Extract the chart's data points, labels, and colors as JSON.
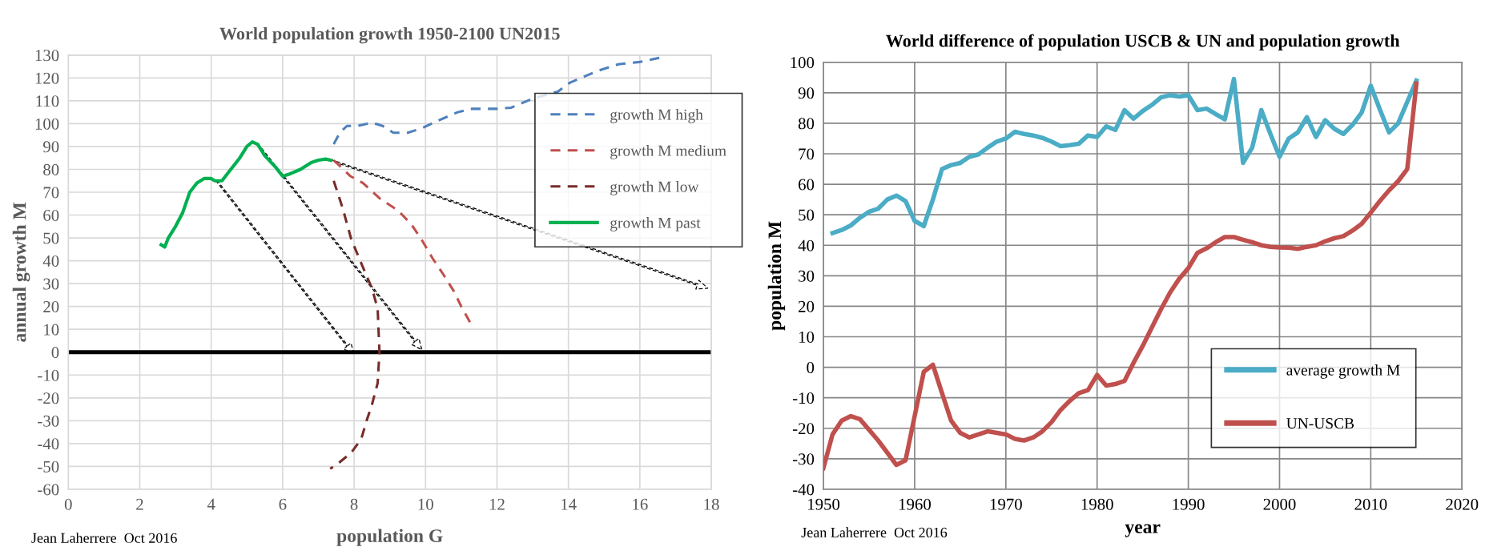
{
  "chart_data": [
    {
      "type": "line",
      "title": "World population growth 1950-2100 UN2015",
      "xlabel": "population G",
      "ylabel": "annual growth M",
      "xlim": [
        0,
        18
      ],
      "xticks": [
        0,
        2,
        4,
        6,
        8,
        10,
        12,
        14,
        16,
        18
      ],
      "ylim": [
        -60,
        130
      ],
      "yticks": [
        -60,
        -50,
        -40,
        -30,
        -20,
        -10,
        0,
        10,
        20,
        30,
        40,
        50,
        60,
        70,
        80,
        90,
        100,
        110,
        120,
        130
      ],
      "grid": true,
      "legend": "top right",
      "ref_lines": [
        {
          "axis": "y",
          "value": 0,
          "color": "#000000"
        }
      ],
      "annotations": [
        "Jean Laherrere  Oct 2016"
      ],
      "series": [
        {
          "name": "growth M high",
          "color": "#4f81bd",
          "line_style": "dashed",
          "x": [
            7.43,
            7.6,
            7.8,
            8.1,
            8.5,
            8.8,
            9.1,
            9.5,
            9.9,
            10.3,
            10.9,
            11.3,
            12.0,
            12.4,
            13.0,
            13.7,
            14.05,
            14.8,
            15.4,
            16.0,
            16.6
          ],
          "values": [
            91,
            96,
            99,
            99,
            100.5,
            99,
            96,
            96,
            98,
            101,
            105,
            106.5,
            106.5,
            107,
            111,
            114,
            118,
            123,
            126,
            127,
            129
          ]
        },
        {
          "name": "growth M medium",
          "color": "#c0504d",
          "line_style": "dashed",
          "x": [
            7.43,
            7.7,
            7.9,
            8.25,
            8.74,
            9.23,
            9.6,
            9.9,
            10.2,
            10.5,
            10.8,
            11.0,
            11.25
          ],
          "values": [
            84,
            80,
            77,
            74,
            67,
            62,
            56,
            49,
            41,
            34,
            26.5,
            20,
            13
          ]
        },
        {
          "name": "growth M low",
          "color": "#772c2a",
          "line_style": "dashed",
          "x": [
            7.43,
            7.68,
            7.92,
            8.17,
            8.5,
            8.66,
            8.71,
            8.66,
            8.5,
            8.35,
            8.2,
            7.92,
            7.53,
            7.33
          ],
          "values": [
            75,
            63,
            49.5,
            40,
            28,
            19,
            0,
            -13.5,
            -23,
            -30,
            -38,
            -44,
            -49,
            -51
          ]
        },
        {
          "name": "growth M past",
          "color": "#00b050",
          "line_style": "solid",
          "x": [
            2.6,
            2.7,
            2.8,
            3.0,
            3.2,
            3.4,
            3.6,
            3.8,
            4.0,
            4.1,
            4.3,
            4.5,
            4.8,
            5.0,
            5.15,
            5.3,
            5.5,
            5.8,
            6.0,
            6.2,
            6.5,
            6.8,
            7.0,
            7.2,
            7.35
          ],
          "values": [
            47,
            46,
            50,
            55,
            61,
            70,
            74,
            76,
            76,
            75,
            75,
            79,
            85,
            90,
            92,
            91,
            86,
            81,
            77,
            78,
            80,
            83,
            84,
            84.5,
            84
          ]
        }
      ]
    },
    {
      "type": "line",
      "title": "World difference of population USCB & UN and population growth",
      "xlabel": "year",
      "ylabel": "population M",
      "xlim": [
        1950,
        2020
      ],
      "xticks": [
        1950,
        1960,
        1970,
        1980,
        1990,
        2000,
        2010,
        2020
      ],
      "ylim": [
        -40,
        100
      ],
      "yticks": [
        -40,
        -30,
        -20,
        -10,
        0,
        10,
        20,
        30,
        40,
        50,
        60,
        70,
        80,
        90,
        100
      ],
      "grid": true,
      "legend": "bottom right",
      "annotations": [
        "Jean Laherrere  Oct 2016"
      ],
      "series": [
        {
          "name": "average growth M",
          "color": "#4bacc6",
          "line_style": "solid",
          "x": [
            1951,
            1952,
            1953,
            1954,
            1955,
            1956,
            1957,
            1958,
            1959,
            1960,
            1961,
            1962,
            1963,
            1964,
            1965,
            1966,
            1967,
            1968,
            1969,
            1970,
            1971,
            1972,
            1973,
            1974,
            1975,
            1976,
            1977,
            1978,
            1979,
            1980,
            1981,
            1982,
            1983,
            1984,
            1985,
            1986,
            1987,
            1988,
            1989,
            1990,
            1991,
            1992,
            1993,
            1994,
            1995,
            1996,
            1997,
            1998,
            1999,
            2000,
            2001,
            2002,
            2003,
            2004,
            2005,
            2006,
            2007,
            2008,
            2009,
            2010,
            2011,
            2012,
            2013,
            2014,
            2015
          ],
          "values": [
            44,
            45,
            46.5,
            49,
            51,
            52,
            55,
            56.3,
            54.5,
            48,
            46.3,
            55,
            65,
            66.3,
            67,
            69,
            69.8,
            72,
            74,
            75,
            77.2,
            76.5,
            76,
            75.2,
            74,
            72.5,
            72.8,
            73.3,
            76,
            75.5,
            79,
            77.8,
            84.3,
            81.5,
            84,
            86,
            88.5,
            89.2,
            88.8,
            89.2,
            84.3,
            84.8,
            83,
            81.3,
            94.5,
            67,
            72,
            84.3,
            76.5,
            69,
            75,
            77,
            82,
            75.5,
            81,
            78.2,
            76.5,
            79.5,
            83.5,
            92.3,
            84.5,
            77,
            80,
            87,
            94
          ]
        },
        {
          "name": "UN-USCB",
          "color": "#c0504d",
          "line_style": "solid",
          "x": [
            1950,
            1951,
            1952,
            1953,
            1954,
            1955,
            1956,
            1957,
            1958,
            1959,
            1960,
            1961,
            1962,
            1963,
            1964,
            1965,
            1966,
            1967,
            1968,
            1969,
            1970,
            1971,
            1972,
            1973,
            1974,
            1975,
            1976,
            1977,
            1978,
            1979,
            1980,
            1981,
            1982,
            1983,
            1984,
            1985,
            1986,
            1987,
            1988,
            1989,
            1990,
            1991,
            1992,
            1993,
            1994,
            1995,
            1996,
            1997,
            1998,
            1999,
            2000,
            2001,
            2002,
            2003,
            2004,
            2005,
            2006,
            2007,
            2008,
            2009,
            2010,
            2011,
            2012,
            2013,
            2014,
            2015
          ],
          "values": [
            -33,
            -22,
            -17.5,
            -16,
            -17,
            -20.5,
            -24,
            -28,
            -32,
            -30.5,
            -16,
            -1.5,
            0.8,
            -8.5,
            -17.5,
            -21.5,
            -23,
            -22,
            -21,
            -21.5,
            -22,
            -23.5,
            -24,
            -23,
            -21,
            -18,
            -14,
            -11,
            -8.5,
            -7.5,
            -2.5,
            -6,
            -5.5,
            -4.5,
            1.5,
            7,
            13,
            19,
            24.5,
            29,
            32.5,
            37.5,
            39,
            41,
            42.7,
            42.7,
            41.8,
            41,
            40,
            39.5,
            39.3,
            39.2,
            38.8,
            39.5,
            40,
            41.3,
            42.3,
            43,
            44.8,
            47,
            50.7,
            54.5,
            58,
            61,
            65,
            93
          ]
        }
      ]
    }
  ]
}
